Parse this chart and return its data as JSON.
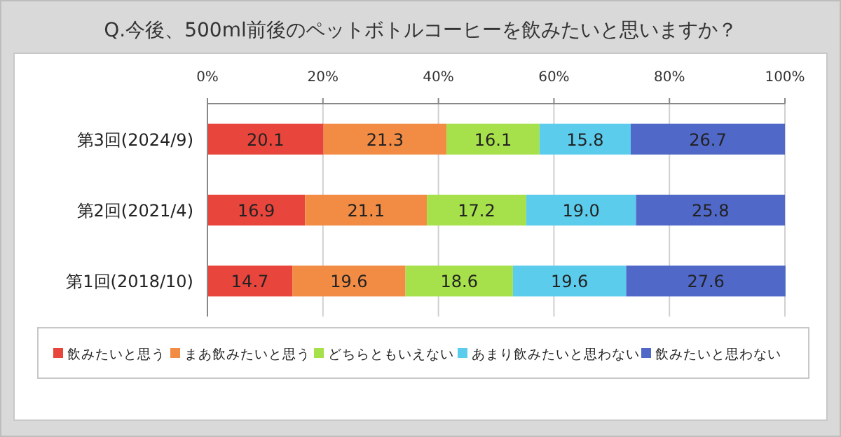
{
  "chart_data": {
    "type": "bar",
    "orientation": "horizontal",
    "stacked": true,
    "title": "Q.今後、500ml前後のペットボトルコーヒーを飲みたいと思いますか？",
    "categories": [
      "第3回(2024/9)",
      "第2回(2021/4)",
      "第1回(2018/10)"
    ],
    "series": [
      {
        "name": "飲みたいと思う",
        "color": "#e8453c",
        "values": [
          20.1,
          16.9,
          14.7
        ],
        "value_labels": [
          "20.1",
          "16.9",
          "14.7"
        ]
      },
      {
        "name": "まあ飲みたいと思う",
        "color": "#f28c45",
        "values": [
          21.3,
          21.1,
          19.6
        ],
        "value_labels": [
          "21.3",
          "21.1",
          "19.6"
        ]
      },
      {
        "name": "どちらともいえない",
        "color": "#a6e04a",
        "values": [
          16.1,
          17.2,
          18.6
        ],
        "value_labels": [
          "16.1",
          "17.2",
          "18.6"
        ]
      },
      {
        "name": "あまり飲みたいと思わない",
        "color": "#5cccec",
        "values": [
          15.8,
          19.0,
          19.6
        ],
        "value_labels": [
          "15.8",
          "19.0",
          "19.6"
        ]
      },
      {
        "name": "飲みたいと思わない",
        "color": "#5068c8",
        "values": [
          26.7,
          25.8,
          27.6
        ],
        "value_labels": [
          "26.7",
          "25.8",
          "27.6"
        ]
      }
    ],
    "xlim": [
      0,
      100
    ],
    "xticks": [
      {
        "value": 0,
        "label": "0%"
      },
      {
        "value": 20,
        "label": "20%"
      },
      {
        "value": 40,
        "label": "40%"
      },
      {
        "value": 60,
        "label": "60%"
      },
      {
        "value": 80,
        "label": "80%"
      },
      {
        "value": 100,
        "label": "100%"
      }
    ],
    "grid": "x",
    "legend": "bottom"
  }
}
